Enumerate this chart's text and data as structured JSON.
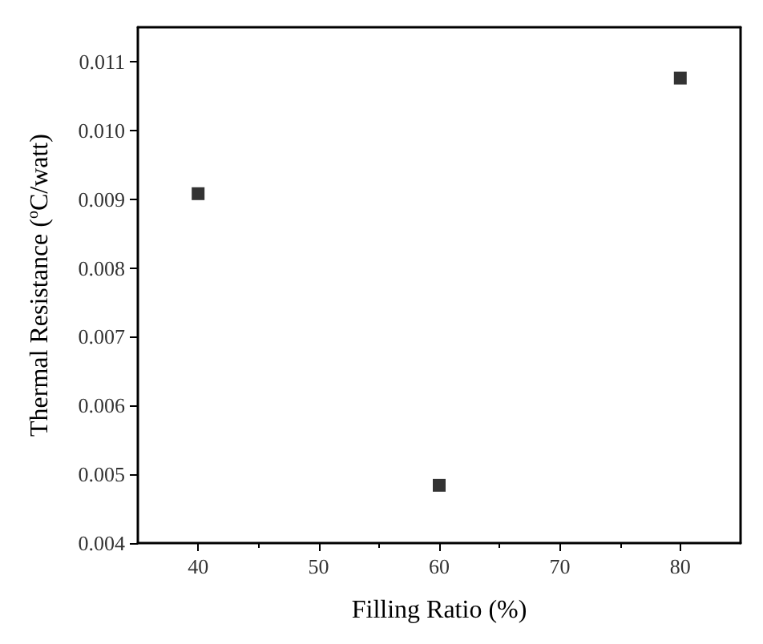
{
  "chart_data": {
    "type": "scatter",
    "xlabel": "Filling Ratio (%)",
    "ylabel": "Thermal Resistance ($^{o}$C/watt)",
    "x": [
      40,
      60,
      80
    ],
    "series": [
      {
        "color": "#000000",
        "values": [
          0.00908,
          0.00484,
          0.01076
        ]
      }
    ],
    "xlim": [
      35,
      85
    ],
    "xticks": [
      40,
      50,
      60,
      70,
      80
    ],
    "ylim": [
      0.004,
      0.0115
    ],
    "yticks": [
      0.004,
      0.005,
      0.006,
      0.007,
      0.008,
      0.009,
      {
        "value": 0.01,
        "label": "0.010"
      },
      0.011
    ],
    "marker": "square",
    "grid": false
  }
}
